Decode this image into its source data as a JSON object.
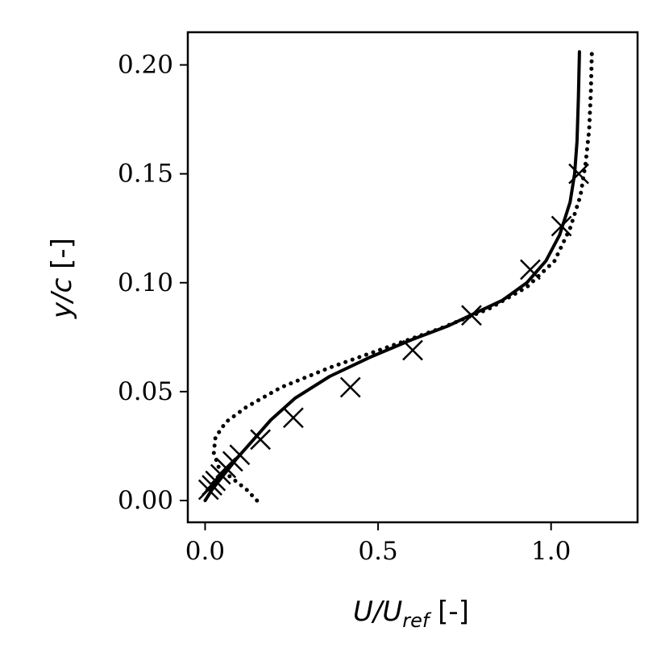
{
  "chart_data": {
    "type": "line",
    "title": "",
    "xlabel": "U/U_ref [-]",
    "xlabel_parts": {
      "main": "U/U",
      "sub": "ref",
      "unit": " [-]"
    },
    "ylabel": "y/c [-]",
    "ylabel_parts": {
      "main": "y/c",
      "unit": " [-]"
    },
    "xlim": [
      -0.05,
      1.25
    ],
    "ylim": [
      -0.01,
      0.215
    ],
    "xticks": [
      0.0,
      0.5,
      1.0
    ],
    "xtick_labels": [
      "0.0",
      "0.5",
      "1.0"
    ],
    "yticks": [
      0.0,
      0.05,
      0.1,
      0.15,
      0.2
    ],
    "ytick_labels": [
      "0.00",
      "0.05",
      "0.10",
      "0.15",
      "0.20"
    ],
    "grid": false,
    "legend": "none",
    "series": [
      {
        "style": "solid",
        "color": "#000000",
        "x": [
          0.0,
          0.02,
          0.05,
          0.09,
          0.14,
          0.19,
          0.26,
          0.36,
          0.48,
          0.6,
          0.7,
          0.78,
          0.86,
          0.93,
          0.985,
          1.025,
          1.055,
          1.068,
          1.075,
          1.079,
          1.082
        ],
        "y": [
          0.0,
          0.005,
          0.011,
          0.019,
          0.028,
          0.037,
          0.047,
          0.057,
          0.066,
          0.074,
          0.08,
          0.086,
          0.092,
          0.1,
          0.11,
          0.122,
          0.137,
          0.15,
          0.165,
          0.185,
          0.206
        ]
      },
      {
        "style": "dotted",
        "color": "#000000",
        "x": [
          0.15,
          0.12,
          0.08,
          0.04,
          0.025,
          0.03,
          0.06,
          0.12,
          0.22,
          0.36,
          0.52,
          0.68,
          0.82,
          0.93,
          1.01,
          1.055,
          1.085,
          1.1,
          1.11,
          1.115,
          1.118
        ],
        "y": [
          0.0,
          0.005,
          0.01,
          0.015,
          0.022,
          0.029,
          0.036,
          0.043,
          0.052,
          0.061,
          0.07,
          0.079,
          0.088,
          0.098,
          0.11,
          0.125,
          0.14,
          0.155,
          0.17,
          0.188,
          0.206
        ]
      },
      {
        "style": "markers",
        "marker": "x",
        "color": "#000000",
        "x": [
          0.01,
          0.02,
          0.03,
          0.045,
          0.06,
          0.08,
          0.1,
          0.16,
          0.255,
          0.42,
          0.6,
          0.77,
          0.94,
          1.03,
          1.08
        ],
        "y": [
          0.005,
          0.007,
          0.009,
          0.012,
          0.015,
          0.018,
          0.021,
          0.028,
          0.038,
          0.052,
          0.069,
          0.085,
          0.106,
          0.126,
          0.15
        ]
      }
    ]
  }
}
